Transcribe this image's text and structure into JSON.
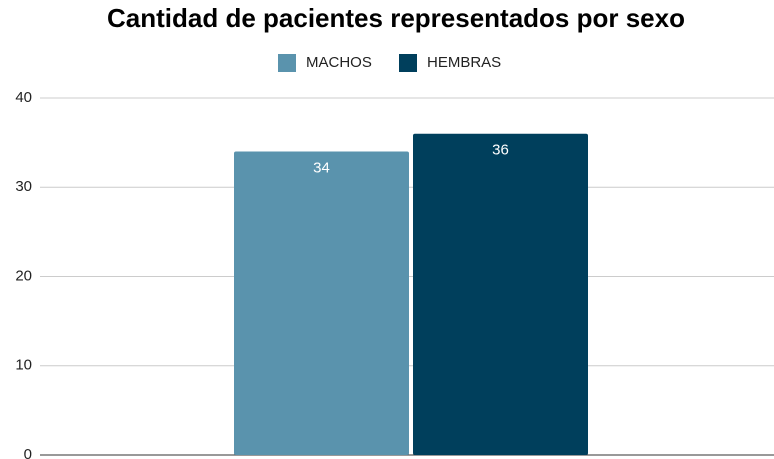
{
  "chart_data": {
    "type": "bar",
    "title": "Cantidad de pacientes representados por sexo",
    "categories": [
      null
    ],
    "series": [
      {
        "name": "MACHOS",
        "color": "#5a93ad",
        "values": [
          34
        ]
      },
      {
        "name": "HEMBRAS",
        "color": "#003f5c",
        "values": [
          36
        ]
      }
    ],
    "ylim": [
      0,
      40
    ],
    "yticks": [
      0,
      10,
      20,
      30,
      40
    ],
    "grid": true,
    "legend": "top"
  }
}
